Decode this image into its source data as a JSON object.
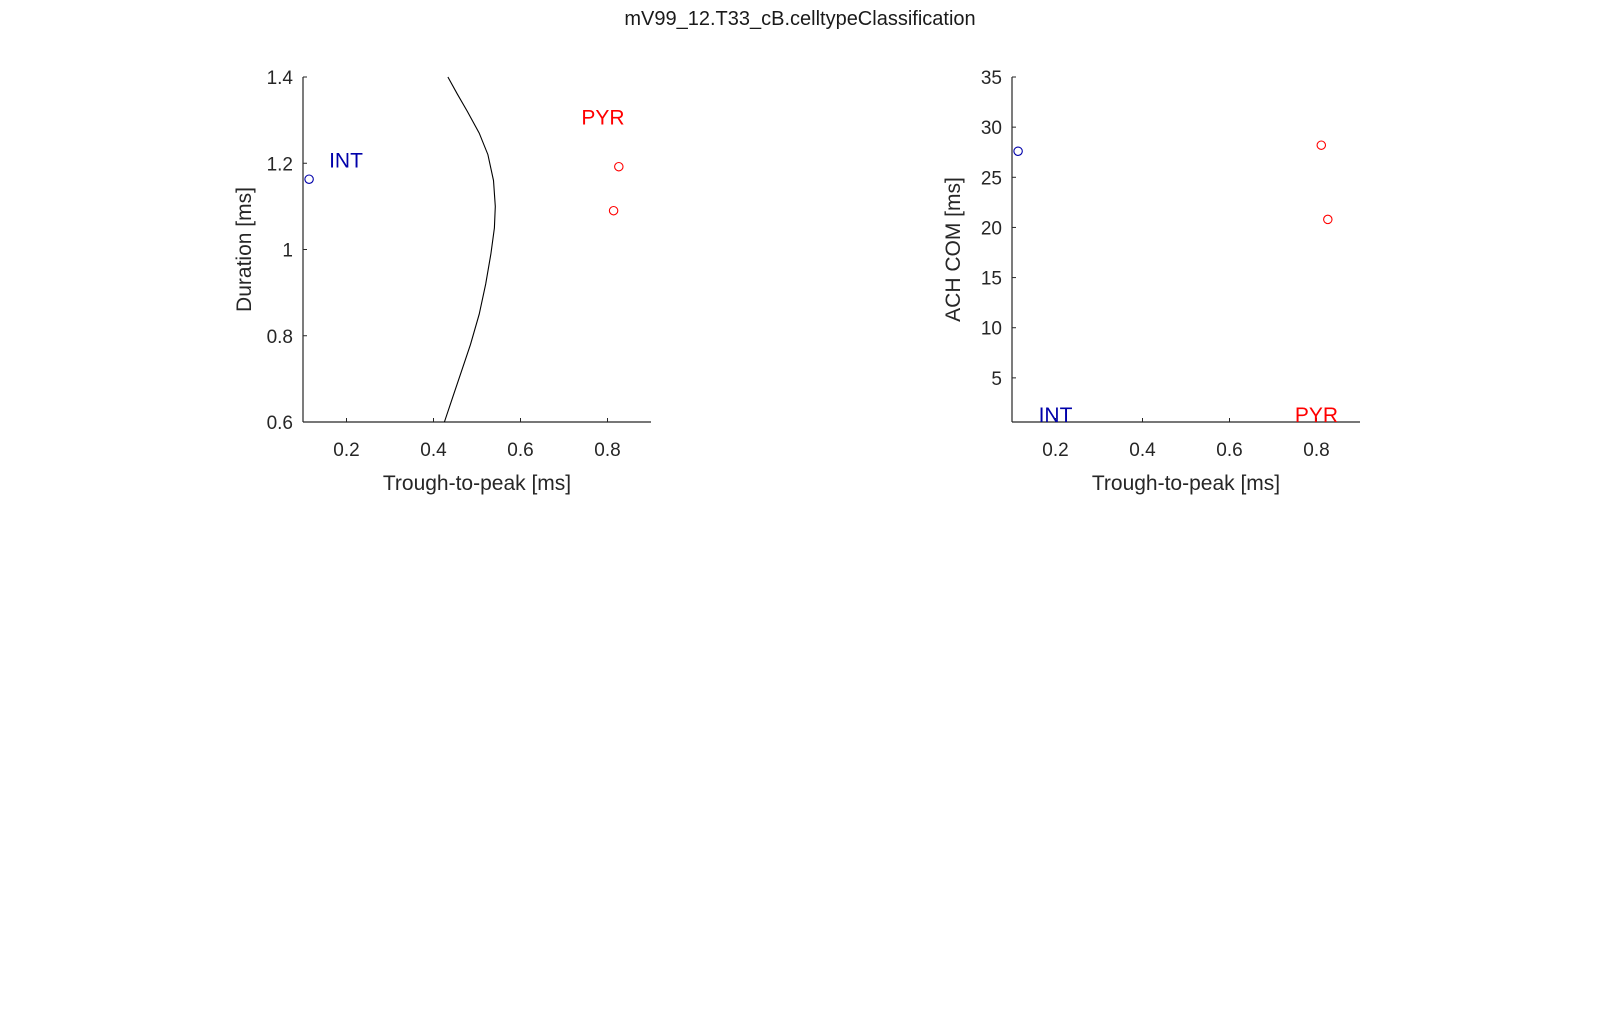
{
  "figure_title": "mV99_12.T33_cB.celltypeClassification",
  "colors": {
    "int": "#0000aa",
    "pyr": "#ff0000",
    "axis": "#262626",
    "boundary": "#000000"
  },
  "chart_data": [
    {
      "type": "scatter",
      "xlabel": "Trough-to-peak [ms]",
      "ylabel": "Duration [ms]",
      "xlim": [
        0.1,
        0.9
      ],
      "ylim": [
        0.6,
        1.4
      ],
      "xticks": [
        0.2,
        0.4,
        0.6,
        0.8
      ],
      "xtick_labels": [
        "0.2",
        "0.4",
        "0.6",
        "0.8"
      ],
      "yticks": [
        0.6,
        0.8,
        1.0,
        1.2,
        1.4
      ],
      "ytick_labels": [
        "0.6",
        "0.8",
        "1",
        "1.2",
        "1.4"
      ],
      "grid": false,
      "series": [
        {
          "name": "INT",
          "color": "#0000aa",
          "x": [
            0.114
          ],
          "y": [
            1.163
          ]
        },
        {
          "name": "PYR",
          "color": "#ff0000",
          "x": [
            0.826,
            0.814
          ],
          "y": [
            1.192,
            1.09
          ]
        }
      ],
      "annotations": [
        {
          "text": "INT",
          "x": 0.16,
          "y": 1.19,
          "color": "#0000aa"
        },
        {
          "text": "PYR",
          "x": 0.74,
          "y": 1.29,
          "color": "#ff0000"
        }
      ],
      "boundary_curve": {
        "color": "#000000",
        "x": [
          0.425,
          0.445,
          0.465,
          0.485,
          0.505,
          0.52,
          0.532,
          0.54,
          0.542,
          0.538,
          0.525,
          0.505,
          0.478,
          0.455,
          0.433
        ],
        "y": [
          0.6,
          0.66,
          0.72,
          0.78,
          0.85,
          0.92,
          0.99,
          1.05,
          1.1,
          1.16,
          1.22,
          1.27,
          1.32,
          1.36,
          1.4
        ]
      }
    },
    {
      "type": "scatter",
      "xlabel": "Trough-to-peak [ms]",
      "ylabel": "ACH COM [ms]",
      "xlim": [
        0.1,
        0.9
      ],
      "ylim": [
        0.6,
        35
      ],
      "xticks": [
        0.2,
        0.4,
        0.6,
        0.8
      ],
      "xtick_labels": [
        "0.2",
        "0.4",
        "0.6",
        "0.8"
      ],
      "yticks": [
        5,
        10,
        15,
        20,
        25,
        30,
        35
      ],
      "ytick_labels": [
        "5",
        "10",
        "15",
        "20",
        "25",
        "30",
        "35"
      ],
      "grid": false,
      "series": [
        {
          "name": "INT",
          "color": "#0000aa",
          "x": [
            0.114
          ],
          "y": [
            27.6
          ]
        },
        {
          "name": "PYR",
          "color": "#ff0000",
          "x": [
            0.811,
            0.826
          ],
          "y": [
            28.2,
            20.8
          ]
        }
      ],
      "annotations": [
        {
          "text": "INT",
          "x": 0.2,
          "y": 0.6,
          "color": "#0000aa"
        },
        {
          "text": "PYR",
          "x": 0.8,
          "y": 0.6,
          "color": "#ff0000"
        }
      ]
    }
  ]
}
